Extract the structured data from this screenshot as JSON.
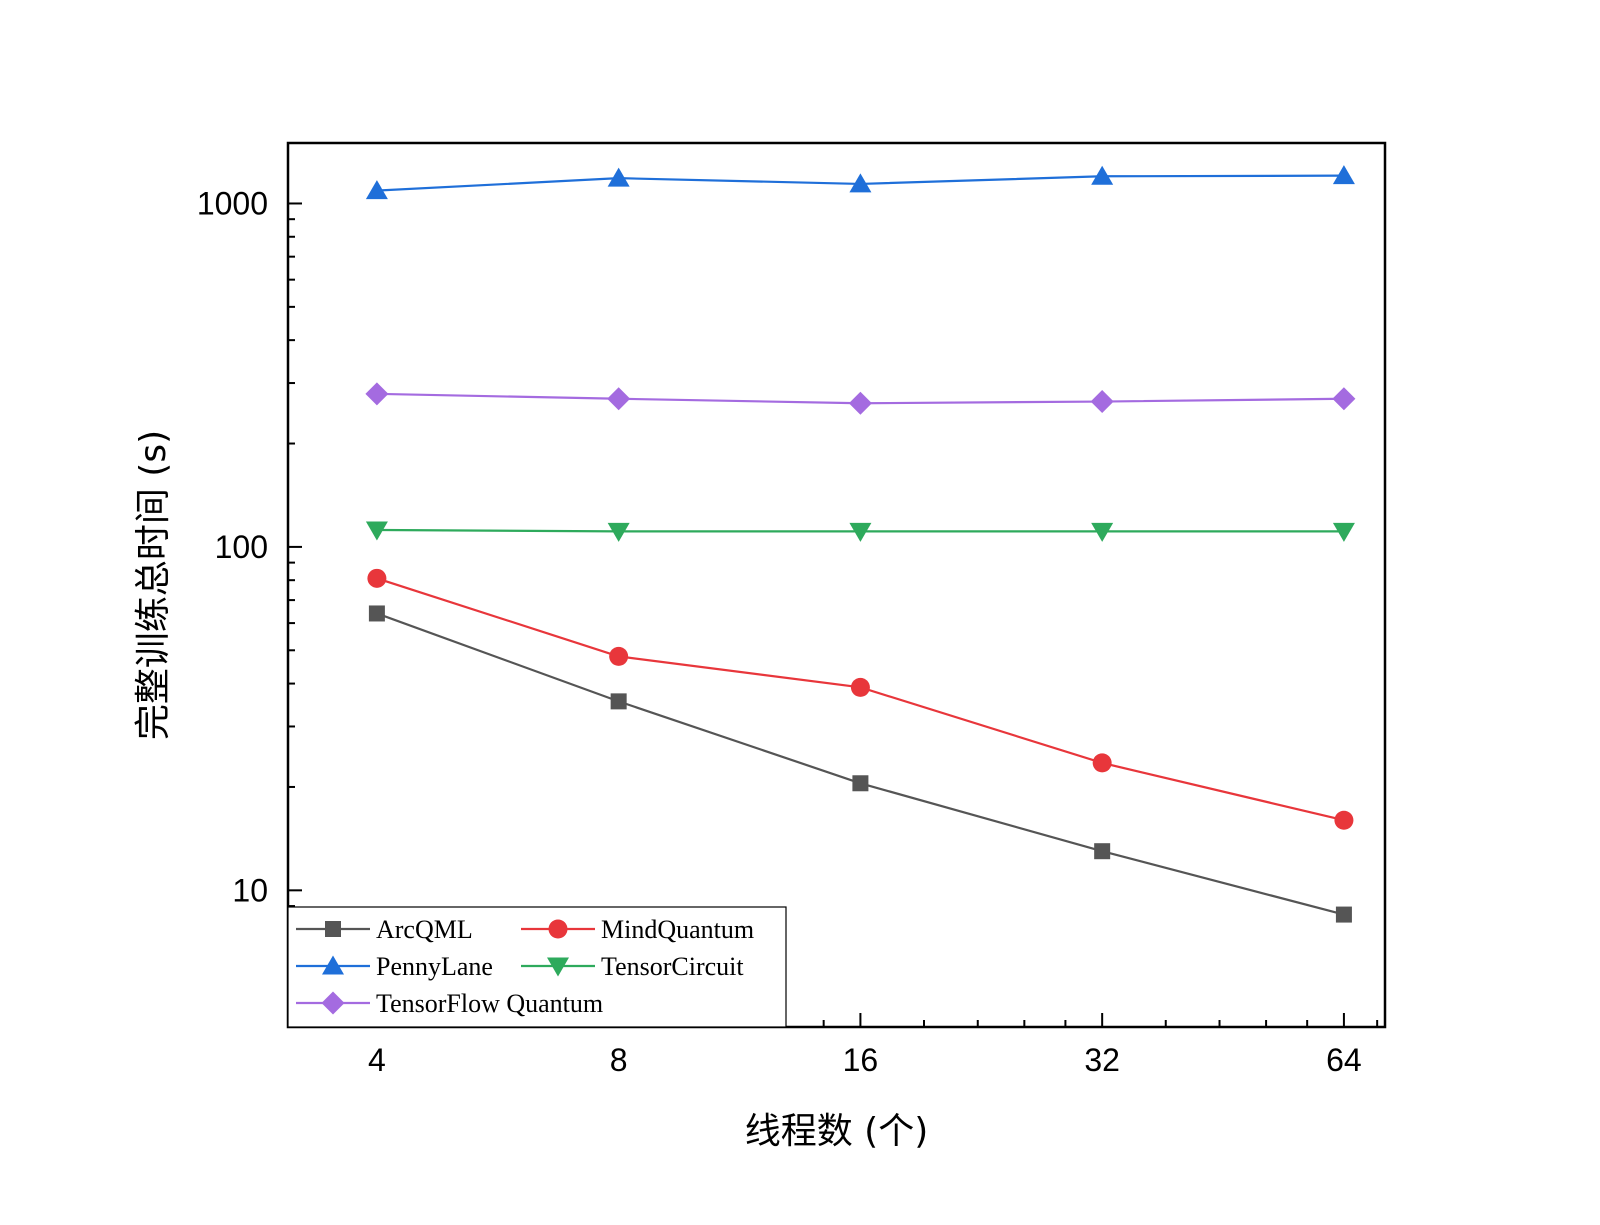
{
  "chart_data": {
    "type": "line",
    "title": "",
    "xlabel": "线程数 (个)",
    "ylabel": "完整训练总时间 (s)",
    "x_scale": "log2",
    "y_scale": "log10",
    "x": [
      4,
      8,
      16,
      32,
      64
    ],
    "x_tick_labels": [
      "4",
      "8",
      "16",
      "32",
      "64"
    ],
    "xlim": [
      3.1,
      72
    ],
    "ylim": [
      4,
      1500
    ],
    "y_ticks": [
      10,
      100,
      1000
    ],
    "y_tick_labels": [
      "10",
      "100",
      "1000"
    ],
    "grid": false,
    "legend_position": "bottom-left",
    "series": [
      {
        "name": "ArcQML",
        "marker": "square",
        "color": "#555555",
        "values": [
          64,
          35.5,
          20.5,
          13,
          8.5
        ]
      },
      {
        "name": "MindQuantum",
        "marker": "circle",
        "color": "#e8363b",
        "values": [
          81,
          48,
          39,
          23.5,
          16
        ]
      },
      {
        "name": "PennyLane",
        "marker": "triangle-up",
        "color": "#1f6fd9",
        "values": [
          1090,
          1185,
          1140,
          1200,
          1205
        ]
      },
      {
        "name": "TensorCircuit",
        "marker": "triangle-down",
        "color": "#2eaa5c",
        "values": [
          112,
          111,
          111,
          111,
          111
        ]
      },
      {
        "name": "TensorFlow Quantum",
        "marker": "diamond",
        "color": "#a46be0",
        "values": [
          279,
          270,
          262,
          265,
          270
        ]
      }
    ]
  }
}
